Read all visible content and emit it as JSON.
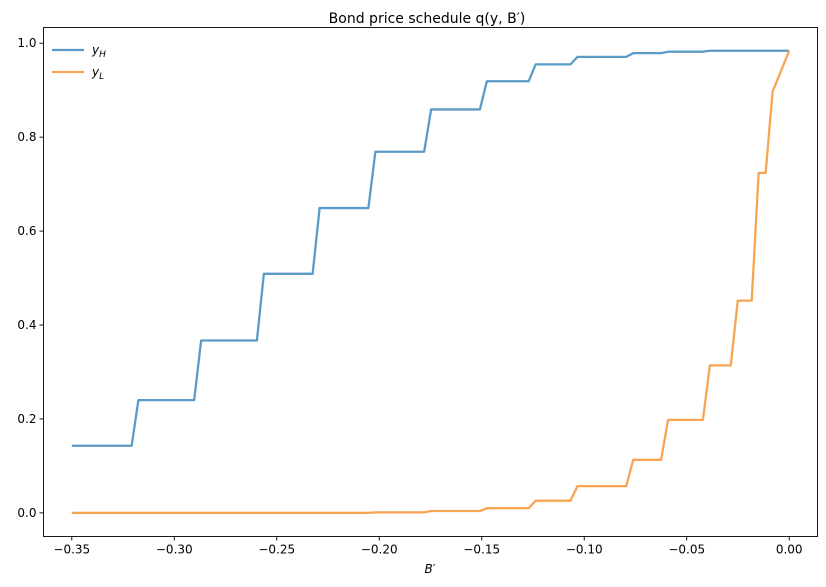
{
  "chart_data": {
    "type": "line",
    "title": "Bond price schedule q(y, B′)",
    "xlabel": "B′",
    "ylabel": "",
    "xlim": [
      -0.3638,
      0.0138
    ],
    "ylim": [
      -0.0503,
      1.0335
    ],
    "xticks": [
      -0.35,
      -0.3,
      -0.25,
      -0.2,
      -0.15,
      -0.1,
      -0.05,
      0.0
    ],
    "xtick_labels": [
      "−0.35",
      "−0.30",
      "−0.25",
      "−0.20",
      "−0.15",
      "−0.10",
      "−0.05",
      "0.00"
    ],
    "yticks": [
      0.0,
      0.2,
      0.4,
      0.6,
      0.8,
      1.0
    ],
    "ytick_labels": [
      "0.0",
      "0.2",
      "0.4",
      "0.6",
      "0.8",
      "1.0"
    ],
    "grid": false,
    "legend": "upper-left",
    "series": [
      {
        "name": "y_H",
        "label_main": "y",
        "label_sub": "H",
        "color": "#5b9bc7",
        "x": [
          -0.35,
          -0.3208,
          -0.3175,
          -0.2903,
          -0.2869,
          -0.2597,
          -0.2563,
          -0.2325,
          -0.2291,
          -0.2053,
          -0.2019,
          -0.1781,
          -0.1747,
          -0.1509,
          -0.1475,
          -0.1271,
          -0.1237,
          -0.1067,
          -0.1033,
          -0.0795,
          -0.0761,
          -0.0625,
          -0.0591,
          -0.0421,
          -0.0387,
          0.0
        ],
        "y": [
          0.143,
          0.143,
          0.24,
          0.24,
          0.367,
          0.367,
          0.509,
          0.509,
          0.649,
          0.649,
          0.769,
          0.769,
          0.859,
          0.859,
          0.919,
          0.919,
          0.955,
          0.955,
          0.971,
          0.971,
          0.979,
          0.979,
          0.982,
          0.982,
          0.984,
          0.984
        ]
      },
      {
        "name": "y_L",
        "label_main": "y",
        "label_sub": "L",
        "color": "#f8a553",
        "x": [
          -0.35,
          -0.2053,
          -0.2019,
          -0.1781,
          -0.1747,
          -0.1509,
          -0.1475,
          -0.1271,
          -0.1237,
          -0.1067,
          -0.1033,
          -0.0795,
          -0.0761,
          -0.0625,
          -0.0591,
          -0.0421,
          -0.0387,
          -0.0285,
          -0.0251,
          -0.0183,
          -0.0149,
          -0.0115,
          -0.0081,
          0.0
        ],
        "y": [
          0.0,
          0.0,
          0.001,
          0.001,
          0.004,
          0.004,
          0.01,
          0.01,
          0.026,
          0.026,
          0.057,
          0.057,
          0.113,
          0.113,
          0.198,
          0.198,
          0.314,
          0.314,
          0.452,
          0.452,
          0.724,
          0.724,
          0.897,
          0.984
        ]
      }
    ]
  }
}
